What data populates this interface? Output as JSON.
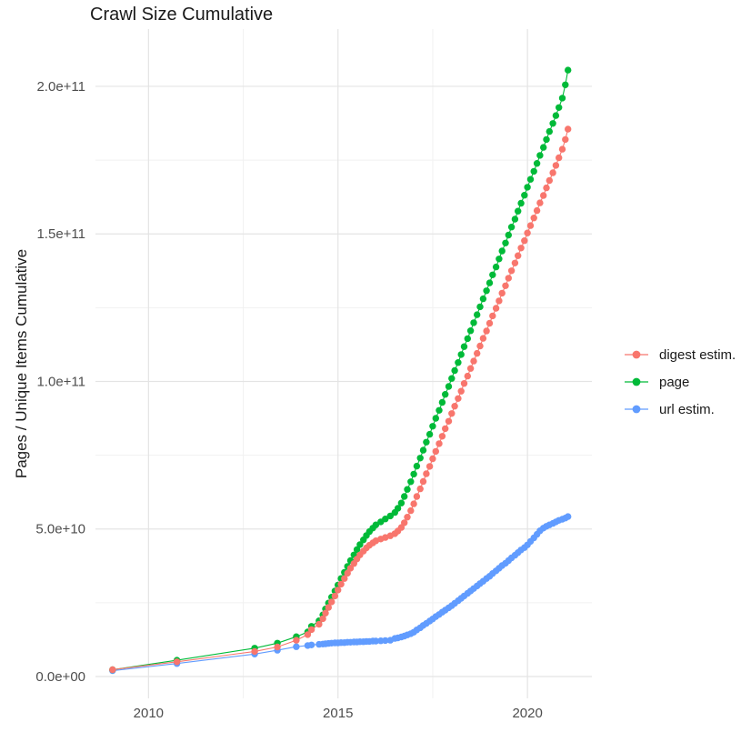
{
  "chart_data": {
    "type": "scatter",
    "title": "Crawl Size Cumulative",
    "xlabel": "",
    "ylabel": "Pages / Unique Items Cumulative",
    "legend_position": "right",
    "grid": true,
    "values_unit": "1e9 (y values stored in billions)",
    "xlim": [
      2008.6,
      2021.7
    ],
    "ylim_e9": [
      -7.4,
      219.4
    ],
    "x_ticks": {
      "values": [
        2010,
        2015,
        2020
      ],
      "labels": [
        "2010",
        "2015",
        "2020"
      ],
      "minor": [
        2012.5,
        2017.5
      ]
    },
    "y_ticks": {
      "values_e9": [
        0,
        50,
        100,
        150,
        200
      ],
      "labels": [
        "0.0e+00",
        "5.0e+10",
        "1.0e+11",
        "1.5e+11",
        "2.0e+11"
      ],
      "minor_e9": [
        25,
        75,
        125,
        175
      ]
    },
    "colors": {
      "grid_major": "#e4e4e4",
      "grid_minor": "#f1f1f1",
      "axis_text": "#4d4d4d",
      "title_text": "#1a1a1a",
      "legend_text": "#1a1a1a"
    },
    "draw_order": [
      2,
      1,
      0
    ],
    "series": [
      {
        "name": "digest estim.",
        "color": "#F8766D",
        "points_year_value_e9": [
          [
            2009.05,
            2.3
          ],
          [
            2010.75,
            5.0
          ],
          [
            2012.8,
            8.5
          ],
          [
            2013.4,
            10.0
          ],
          [
            2013.9,
            12.3
          ],
          [
            2014.2,
            14.2
          ],
          [
            2014.3,
            15.9
          ],
          [
            2014.5,
            17.7
          ],
          [
            2014.6,
            19.6
          ],
          [
            2014.67,
            21.5
          ],
          [
            2014.75,
            23.4
          ],
          [
            2014.83,
            25.3
          ],
          [
            2014.92,
            27.3
          ],
          [
            2015.0,
            29.3
          ],
          [
            2015.08,
            31.3
          ],
          [
            2015.17,
            33.2
          ],
          [
            2015.25,
            35.0
          ],
          [
            2015.33,
            36.7
          ],
          [
            2015.42,
            38.3
          ],
          [
            2015.5,
            39.8
          ],
          [
            2015.58,
            41.2
          ],
          [
            2015.67,
            42.5
          ],
          [
            2015.75,
            43.6
          ],
          [
            2015.83,
            44.5
          ],
          [
            2015.92,
            45.3
          ],
          [
            2016.0,
            46.0
          ],
          [
            2016.13,
            46.6
          ],
          [
            2016.25,
            47.1
          ],
          [
            2016.38,
            47.7
          ],
          [
            2016.5,
            48.4
          ],
          [
            2016.58,
            49.3
          ],
          [
            2016.67,
            50.5
          ],
          [
            2016.75,
            52.1
          ],
          [
            2016.83,
            54.0
          ],
          [
            2016.92,
            56.2
          ],
          [
            2017.0,
            58.5
          ],
          [
            2017.08,
            61.0
          ],
          [
            2017.17,
            63.6
          ],
          [
            2017.25,
            66.1
          ],
          [
            2017.33,
            68.7
          ],
          [
            2017.42,
            71.2
          ],
          [
            2017.5,
            73.8
          ],
          [
            2017.58,
            76.3
          ],
          [
            2017.67,
            78.9
          ],
          [
            2017.75,
            81.4
          ],
          [
            2017.83,
            84.0
          ],
          [
            2017.92,
            86.5
          ],
          [
            2018.0,
            89.1
          ],
          [
            2018.08,
            91.6
          ],
          [
            2018.17,
            94.2
          ],
          [
            2018.25,
            96.7
          ],
          [
            2018.33,
            99.3
          ],
          [
            2018.42,
            101.8
          ],
          [
            2018.5,
            104.4
          ],
          [
            2018.58,
            106.9
          ],
          [
            2018.67,
            109.5
          ],
          [
            2018.75,
            112.0
          ],
          [
            2018.83,
            114.6
          ],
          [
            2018.92,
            117.1
          ],
          [
            2019.0,
            119.7
          ],
          [
            2019.08,
            122.2
          ],
          [
            2019.17,
            124.8
          ],
          [
            2019.25,
            127.3
          ],
          [
            2019.33,
            129.9
          ],
          [
            2019.42,
            132.4
          ],
          [
            2019.5,
            135.0
          ],
          [
            2019.58,
            137.5
          ],
          [
            2019.67,
            140.1
          ],
          [
            2019.75,
            142.6
          ],
          [
            2019.83,
            145.2
          ],
          [
            2019.92,
            147.7
          ],
          [
            2020.0,
            150.3
          ],
          [
            2020.08,
            152.8
          ],
          [
            2020.17,
            155.4
          ],
          [
            2020.25,
            157.9
          ],
          [
            2020.33,
            160.5
          ],
          [
            2020.42,
            163.0
          ],
          [
            2020.5,
            165.6
          ],
          [
            2020.58,
            168.1
          ],
          [
            2020.67,
            170.7
          ],
          [
            2020.75,
            173.2
          ],
          [
            2020.83,
            175.8
          ],
          [
            2020.92,
            178.7
          ],
          [
            2021.0,
            182.0
          ],
          [
            2021.07,
            185.5
          ]
        ]
      },
      {
        "name": "page",
        "color": "#00BA38",
        "points_year_value_e9": [
          [
            2009.05,
            2.3
          ],
          [
            2010.75,
            5.5
          ],
          [
            2012.8,
            9.6
          ],
          [
            2013.4,
            11.3
          ],
          [
            2013.9,
            13.5
          ],
          [
            2014.2,
            15.1
          ],
          [
            2014.3,
            17.0
          ],
          [
            2014.5,
            18.9
          ],
          [
            2014.6,
            20.9
          ],
          [
            2014.67,
            22.9
          ],
          [
            2014.75,
            24.9
          ],
          [
            2014.83,
            26.9
          ],
          [
            2014.92,
            29.0
          ],
          [
            2015.0,
            31.0
          ],
          [
            2015.08,
            33.2
          ],
          [
            2015.17,
            35.3
          ],
          [
            2015.25,
            37.3
          ],
          [
            2015.33,
            39.3
          ],
          [
            2015.42,
            41.2
          ],
          [
            2015.5,
            43.0
          ],
          [
            2015.58,
            44.7
          ],
          [
            2015.67,
            46.3
          ],
          [
            2015.75,
            47.8
          ],
          [
            2015.83,
            49.1
          ],
          [
            2015.92,
            50.3
          ],
          [
            2016.0,
            51.4
          ],
          [
            2016.13,
            52.4
          ],
          [
            2016.25,
            53.4
          ],
          [
            2016.38,
            54.4
          ],
          [
            2016.5,
            55.6
          ],
          [
            2016.58,
            57.0
          ],
          [
            2016.67,
            58.8
          ],
          [
            2016.75,
            61.0
          ],
          [
            2016.83,
            63.4
          ],
          [
            2016.92,
            66.0
          ],
          [
            2017.0,
            68.6
          ],
          [
            2017.08,
            71.3
          ],
          [
            2017.17,
            74.0
          ],
          [
            2017.25,
            76.7
          ],
          [
            2017.33,
            79.4
          ],
          [
            2017.42,
            82.1
          ],
          [
            2017.5,
            84.8
          ],
          [
            2017.58,
            87.5
          ],
          [
            2017.67,
            90.2
          ],
          [
            2017.75,
            92.9
          ],
          [
            2017.83,
            95.6
          ],
          [
            2017.92,
            98.3
          ],
          [
            2018.0,
            101.0
          ],
          [
            2018.08,
            103.7
          ],
          [
            2018.17,
            106.4
          ],
          [
            2018.25,
            109.1
          ],
          [
            2018.33,
            111.8
          ],
          [
            2018.42,
            114.5
          ],
          [
            2018.5,
            117.2
          ],
          [
            2018.58,
            119.9
          ],
          [
            2018.67,
            122.6
          ],
          [
            2018.75,
            125.3
          ],
          [
            2018.83,
            128.0
          ],
          [
            2018.92,
            130.7
          ],
          [
            2019.0,
            133.4
          ],
          [
            2019.08,
            136.1
          ],
          [
            2019.17,
            138.8
          ],
          [
            2019.25,
            141.5
          ],
          [
            2019.33,
            144.2
          ],
          [
            2019.42,
            146.9
          ],
          [
            2019.5,
            149.6
          ],
          [
            2019.58,
            152.3
          ],
          [
            2019.67,
            155.0
          ],
          [
            2019.75,
            157.7
          ],
          [
            2019.83,
            160.4
          ],
          [
            2019.92,
            163.1
          ],
          [
            2020.0,
            165.8
          ],
          [
            2020.08,
            168.5
          ],
          [
            2020.17,
            171.2
          ],
          [
            2020.25,
            173.9
          ],
          [
            2020.33,
            176.6
          ],
          [
            2020.42,
            179.3
          ],
          [
            2020.5,
            182.0
          ],
          [
            2020.58,
            184.7
          ],
          [
            2020.67,
            187.4
          ],
          [
            2020.75,
            190.1
          ],
          [
            2020.83,
            192.8
          ],
          [
            2020.92,
            196.0
          ],
          [
            2021.0,
            200.5
          ],
          [
            2021.07,
            205.5
          ]
        ]
      },
      {
        "name": "url estim.",
        "color": "#619CFF",
        "points_year_value_e9": [
          [
            2009.05,
            2.0
          ],
          [
            2010.75,
            4.4
          ],
          [
            2012.8,
            7.6
          ],
          [
            2013.4,
            8.9
          ],
          [
            2013.9,
            10.1
          ],
          [
            2014.2,
            10.5
          ],
          [
            2014.3,
            10.7
          ],
          [
            2014.5,
            10.9
          ],
          [
            2014.6,
            11.0
          ],
          [
            2014.67,
            11.1
          ],
          [
            2014.75,
            11.2
          ],
          [
            2014.83,
            11.3
          ],
          [
            2014.92,
            11.4
          ],
          [
            2015.0,
            11.4
          ],
          [
            2015.08,
            11.5
          ],
          [
            2015.17,
            11.5
          ],
          [
            2015.25,
            11.6
          ],
          [
            2015.33,
            11.6
          ],
          [
            2015.42,
            11.7
          ],
          [
            2015.5,
            11.7
          ],
          [
            2015.58,
            11.8
          ],
          [
            2015.67,
            11.8
          ],
          [
            2015.75,
            11.9
          ],
          [
            2015.83,
            11.9
          ],
          [
            2015.92,
            12.0
          ],
          [
            2016.0,
            12.0
          ],
          [
            2016.13,
            12.1
          ],
          [
            2016.25,
            12.2
          ],
          [
            2016.38,
            12.3
          ],
          [
            2016.5,
            12.9
          ],
          [
            2016.58,
            13.1
          ],
          [
            2016.67,
            13.4
          ],
          [
            2016.75,
            13.7
          ],
          [
            2016.83,
            14.1
          ],
          [
            2016.92,
            14.5
          ],
          [
            2017.0,
            15.0
          ],
          [
            2017.08,
            15.8
          ],
          [
            2017.17,
            16.5
          ],
          [
            2017.25,
            17.3
          ],
          [
            2017.33,
            18.0
          ],
          [
            2017.42,
            18.8
          ],
          [
            2017.5,
            19.5
          ],
          [
            2017.58,
            20.3
          ],
          [
            2017.67,
            21.0
          ],
          [
            2017.75,
            21.8
          ],
          [
            2017.83,
            22.5
          ],
          [
            2017.92,
            23.3
          ],
          [
            2018.0,
            24.0
          ],
          [
            2018.08,
            24.8
          ],
          [
            2018.17,
            25.7
          ],
          [
            2018.25,
            26.5
          ],
          [
            2018.33,
            27.3
          ],
          [
            2018.42,
            28.2
          ],
          [
            2018.5,
            29.0
          ],
          [
            2018.58,
            29.8
          ],
          [
            2018.67,
            30.7
          ],
          [
            2018.75,
            31.5
          ],
          [
            2018.83,
            32.3
          ],
          [
            2018.92,
            33.2
          ],
          [
            2019.0,
            34.0
          ],
          [
            2019.08,
            34.9
          ],
          [
            2019.17,
            35.8
          ],
          [
            2019.25,
            36.7
          ],
          [
            2019.33,
            37.6
          ],
          [
            2019.42,
            38.4
          ],
          [
            2019.5,
            39.3
          ],
          [
            2019.58,
            40.2
          ],
          [
            2019.67,
            41.1
          ],
          [
            2019.75,
            42.0
          ],
          [
            2019.83,
            42.9
          ],
          [
            2019.92,
            43.7
          ],
          [
            2020.0,
            44.6
          ],
          [
            2020.08,
            45.8
          ],
          [
            2020.17,
            47.0
          ],
          [
            2020.25,
            48.2
          ],
          [
            2020.33,
            49.4
          ],
          [
            2020.42,
            50.3
          ],
          [
            2020.5,
            50.9
          ],
          [
            2020.58,
            51.4
          ],
          [
            2020.67,
            51.9
          ],
          [
            2020.75,
            52.4
          ],
          [
            2020.83,
            52.9
          ],
          [
            2020.92,
            53.3
          ],
          [
            2021.0,
            53.7
          ],
          [
            2021.07,
            54.2
          ]
        ]
      }
    ]
  }
}
